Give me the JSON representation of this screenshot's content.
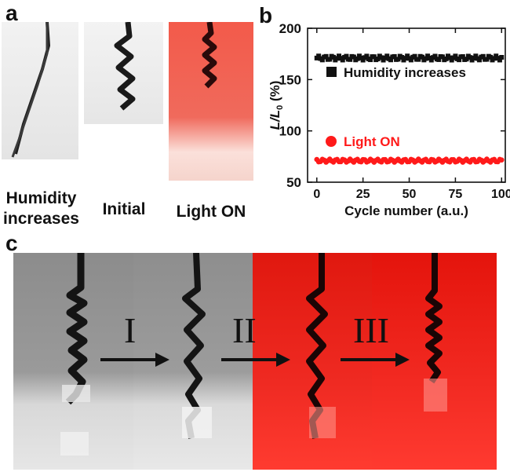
{
  "panel_a": {
    "label": "a",
    "captions": [
      "Humidity\nincreases",
      "Initial",
      "Light ON"
    ]
  },
  "panel_b": {
    "label": "b"
  },
  "panel_c": {
    "label": "c",
    "steps": [
      "I",
      "II",
      "III"
    ]
  },
  "colors": {
    "humidity_series": "#111111",
    "light_series": "#ff1a1a",
    "red_background": "#e81a1a"
  },
  "chart_data": {
    "type": "scatter",
    "title": "",
    "xlabel": "Cycle number (a.u.)",
    "ylabel_main": "L/L",
    "ylabel_sub": "0",
    "ylabel_unit": " (%)",
    "xlim": [
      -5,
      102
    ],
    "ylim": [
      50,
      200
    ],
    "xticks": [
      0,
      25,
      50,
      75,
      100
    ],
    "yticks": [
      50,
      100,
      150,
      200
    ],
    "legend_placement": "inside",
    "series": [
      {
        "name": "Humidity increases",
        "marker": "square",
        "color": "#111111",
        "y_mean": 171,
        "y_jitter": 2,
        "x": [
          0,
          1,
          2,
          3,
          4,
          5,
          6,
          7,
          8,
          9,
          10,
          11,
          12,
          13,
          14,
          15,
          16,
          17,
          18,
          19,
          20,
          21,
          22,
          23,
          24,
          25,
          26,
          27,
          28,
          29,
          30,
          31,
          32,
          33,
          34,
          35,
          36,
          37,
          38,
          39,
          40,
          41,
          42,
          43,
          44,
          45,
          46,
          47,
          48,
          49,
          50,
          51,
          52,
          53,
          54,
          55,
          56,
          57,
          58,
          59,
          60,
          61,
          62,
          63,
          64,
          65,
          66,
          67,
          68,
          69,
          70,
          71,
          72,
          73,
          74,
          75,
          76,
          77,
          78,
          79,
          80,
          81,
          82,
          83,
          84,
          85,
          86,
          87,
          88,
          89,
          90,
          91,
          92,
          93,
          94,
          95,
          96,
          97,
          98,
          99,
          100
        ]
      },
      {
        "name": "Light ON",
        "marker": "circle",
        "color": "#ff1a1a",
        "y_mean": 71,
        "y_jitter": 1.5,
        "x": [
          0,
          1,
          2,
          3,
          4,
          5,
          6,
          7,
          8,
          9,
          10,
          11,
          12,
          13,
          14,
          15,
          16,
          17,
          18,
          19,
          20,
          21,
          22,
          23,
          24,
          25,
          26,
          27,
          28,
          29,
          30,
          31,
          32,
          33,
          34,
          35,
          36,
          37,
          38,
          39,
          40,
          41,
          42,
          43,
          44,
          45,
          46,
          47,
          48,
          49,
          50,
          51,
          52,
          53,
          54,
          55,
          56,
          57,
          58,
          59,
          60,
          61,
          62,
          63,
          64,
          65,
          66,
          67,
          68,
          69,
          70,
          71,
          72,
          73,
          74,
          75,
          76,
          77,
          78,
          79,
          80,
          81,
          82,
          83,
          84,
          85,
          86,
          87,
          88,
          89,
          90,
          91,
          92,
          93,
          94,
          95,
          96,
          97,
          98,
          99,
          100
        ]
      }
    ]
  }
}
